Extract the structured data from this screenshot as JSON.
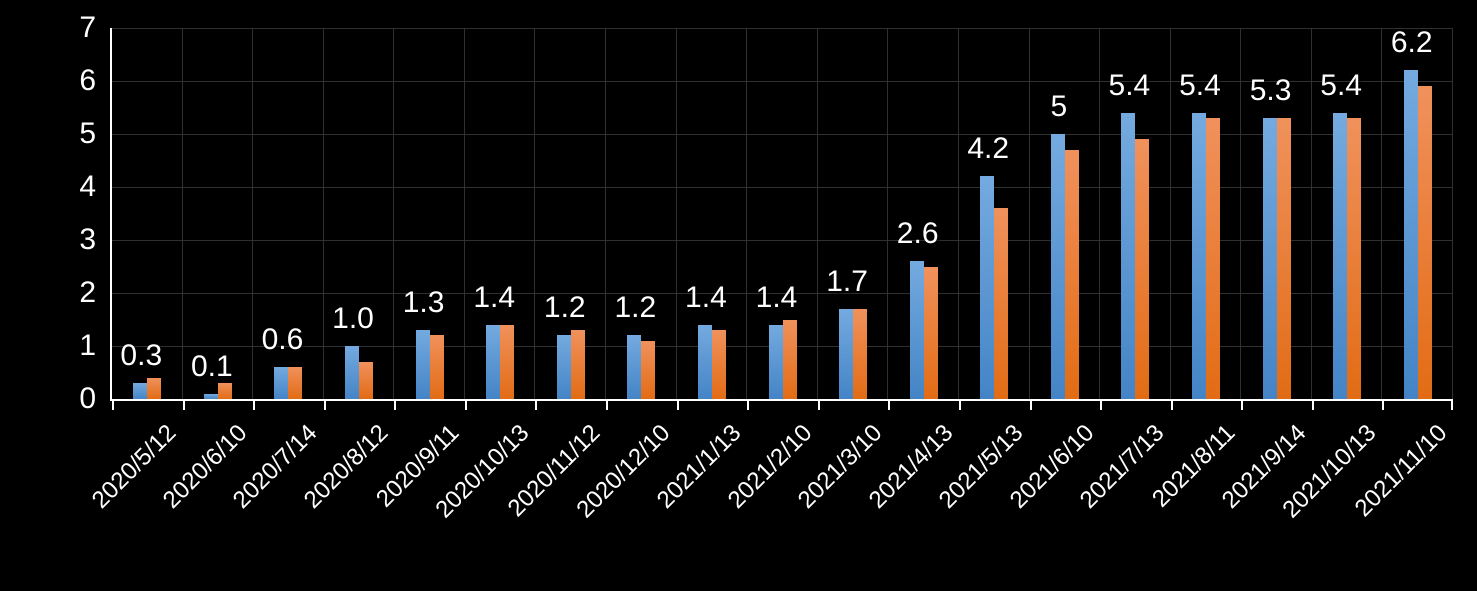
{
  "chart_data": {
    "type": "bar",
    "title": "",
    "categories": [
      "2020/5/12",
      "2020/6/10",
      "2020/7/14",
      "2020/8/12",
      "2020/9/11",
      "2020/10/13",
      "2020/11/12",
      "2020/12/10",
      "2021/1/13",
      "2021/2/10",
      "2021/3/10",
      "2021/4/13",
      "2021/5/13",
      "2021/6/10",
      "2021/7/13",
      "2021/8/11",
      "2021/9/14",
      "2021/10/13",
      "2021/11/10"
    ],
    "series": [
      {
        "name": "blue-series",
        "color": "#5B9BD5",
        "values": [
          0.3,
          0.1,
          0.6,
          1.0,
          1.3,
          1.4,
          1.2,
          1.2,
          1.4,
          1.4,
          1.7,
          2.6,
          4.2,
          5.0,
          5.4,
          5.4,
          5.3,
          5.4,
          6.2
        ],
        "data_labels": [
          "0.3",
          "0.1",
          "0.6",
          "1.0",
          "1.3",
          "1.4",
          "1.2",
          "1.2",
          "1.4",
          "1.4",
          "1.7",
          "2.6",
          "4.2",
          "5",
          "5.4",
          "5.4",
          "5.3",
          "5.4",
          "6.2"
        ]
      },
      {
        "name": "orange-series",
        "color": "#ED7D31",
        "values": [
          0.4,
          0.3,
          0.6,
          0.7,
          1.2,
          1.4,
          1.3,
          1.1,
          1.3,
          1.5,
          1.7,
          2.5,
          3.6,
          4.7,
          4.9,
          5.3,
          5.3,
          5.3,
          5.9
        ],
        "data_labels": []
      }
    ],
    "xlabel": "",
    "ylabel": "",
    "y_axis": {
      "min": 0,
      "max": 7,
      "tick_labels": [
        "0",
        "1",
        "2",
        "3",
        "4",
        "5",
        "6",
        "7"
      ]
    },
    "grid": true,
    "legend": "none",
    "colors": {
      "background": "#000000",
      "gridline": "#303030",
      "axis": "#FFFFFF",
      "text": "#FFFFFF"
    }
  }
}
